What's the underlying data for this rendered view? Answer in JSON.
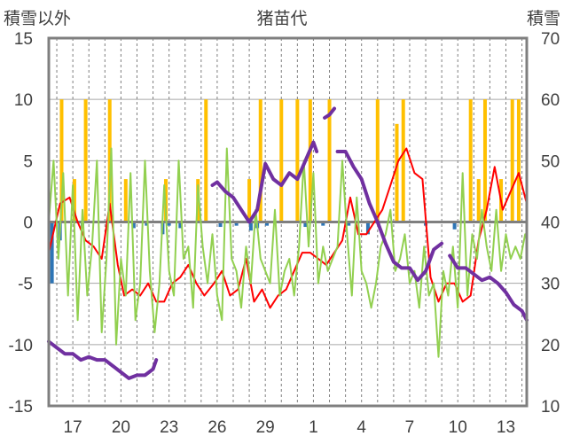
{
  "chart_data": {
    "type": "line",
    "title": "猪苗代",
    "left_axis_label": "積雪以外",
    "right_axis_label": "積雪",
    "left_ylim": [
      -15,
      15
    ],
    "right_ylim": [
      10,
      70
    ],
    "left_ticks": [
      "15",
      "10",
      "5",
      "0",
      "-5",
      "-10",
      "-15"
    ],
    "right_ticks": [
      "70",
      "60",
      "50",
      "40",
      "30",
      "20",
      "10"
    ],
    "x_ticks": [
      "17",
      "20",
      "23",
      "26",
      "29",
      "1",
      "4",
      "7",
      "10",
      "13"
    ],
    "x_days": [
      0,
      3,
      6,
      9,
      12,
      15,
      18,
      21,
      24,
      27
    ],
    "x_range": [
      -1.5,
      28.3
    ],
    "grid": true,
    "colors": {
      "orange": "#ffc000",
      "blue": "#2e75b6",
      "red": "#ff0000",
      "green": "#92d050",
      "purple": "#7030a0",
      "axis": "#7f7f7f"
    },
    "series": [
      {
        "color": "orange",
        "kind": "bar",
        "axis": "left",
        "x": [
          -0.7,
          0.1,
          0.8,
          2.3,
          3.3,
          5.8,
          7.8,
          8.3,
          11.0,
          11.7,
          13.0,
          14.0,
          14.8,
          16.0,
          19.0,
          20.2,
          20.6,
          24.8,
          25.3,
          25.7,
          26.7,
          27.4,
          27.8
        ],
        "values": [
          10,
          3.5,
          10,
          10,
          3.5,
          3.5,
          3.5,
          10,
          3.5,
          10,
          10,
          10,
          10,
          10,
          10,
          8,
          10,
          10,
          3.5,
          10,
          3.5,
          10,
          10
        ]
      },
      {
        "color": "blue",
        "kind": "bar",
        "axis": "left",
        "x": [
          -1.3,
          -0.8,
          0.6,
          3.8,
          4.6,
          5.6,
          6.0,
          6.7,
          9.2,
          10.2,
          11.1,
          11.5,
          12.1,
          14.5,
          15.6,
          17.2,
          18.4,
          22.0,
          23.8
        ],
        "values": [
          -5,
          -1.5,
          -0.5,
          -0.5,
          -0.3,
          -1.0,
          -0.3,
          -0.5,
          -0.4,
          -0.3,
          -0.7,
          -0.5,
          -0.3,
          -0.4,
          -0.3,
          -0.3,
          -1.0,
          -0.3,
          -0.6
        ]
      },
      {
        "color": "red",
        "kind": "line",
        "axis": "left",
        "x": [
          -1.5,
          -0.8,
          -0.2,
          0.3,
          0.8,
          1.3,
          1.8,
          2.3,
          2.8,
          3.2,
          3.7,
          4.2,
          4.7,
          5.2,
          5.7,
          6.2,
          6.7,
          7.2,
          7.7,
          8.2,
          8.8,
          9.3,
          9.8,
          10.3,
          10.8,
          11.3,
          11.8,
          12.3,
          12.8,
          13.3,
          13.8,
          14.3,
          14.8,
          15.3,
          15.8,
          16.3,
          16.8,
          17.3,
          17.8,
          18.3,
          18.8,
          19.3,
          19.8,
          20.3,
          20.8,
          21.3,
          21.8,
          22.3,
          22.8,
          23.3,
          23.8,
          24.3,
          24.8,
          25.3,
          25.8,
          26.3,
          26.8,
          27.3,
          27.8,
          28.3
        ],
        "values": [
          -2.5,
          1.5,
          2.0,
          0.0,
          -1.5,
          -2.0,
          -3.0,
          1.5,
          -3.5,
          -6.0,
          -5.5,
          -6.0,
          -5.0,
          -6.5,
          -6.5,
          -5.0,
          -4.5,
          -3.5,
          -5.0,
          -6.0,
          -5.0,
          -4.0,
          -6.0,
          -5.5,
          -3.0,
          -6.5,
          -5.5,
          -7.0,
          -6.0,
          -5.5,
          -4.0,
          -2.5,
          -2.5,
          -3.0,
          -3.5,
          -2.5,
          -1.5,
          2.0,
          -1.0,
          -1.0,
          0.0,
          1.0,
          3.0,
          5.0,
          6.0,
          4.0,
          3.5,
          -4.5,
          -6.5,
          -5.0,
          -5.0,
          -6.5,
          -6.0,
          -1.5,
          1.0,
          4.5,
          1.0,
          2.5,
          4.0,
          1.5
        ]
      },
      {
        "color": "green",
        "kind": "line",
        "axis": "left",
        "x": [
          -1.5,
          -1.2,
          -0.9,
          -0.6,
          -0.3,
          0.0,
          0.3,
          0.6,
          0.9,
          1.2,
          1.5,
          1.8,
          2.1,
          2.4,
          2.7,
          3.0,
          3.3,
          3.6,
          3.9,
          4.2,
          4.5,
          4.8,
          5.1,
          5.4,
          5.7,
          6.0,
          6.3,
          6.6,
          6.9,
          7.2,
          7.5,
          7.8,
          8.1,
          8.4,
          8.7,
          9.0,
          9.3,
          9.6,
          9.9,
          10.2,
          10.5,
          10.8,
          11.1,
          11.4,
          11.7,
          12.0,
          12.3,
          12.6,
          12.9,
          13.2,
          13.5,
          13.8,
          14.1,
          14.4,
          14.7,
          15.0,
          15.3,
          15.6,
          15.9,
          16.2,
          16.5,
          16.8,
          17.1,
          17.4,
          17.7,
          18.0,
          18.3,
          18.6,
          18.9,
          19.2,
          19.5,
          19.8,
          20.1,
          20.4,
          20.7,
          21.0,
          21.3,
          21.6,
          21.9,
          22.2,
          22.5,
          22.8,
          23.1,
          23.4,
          23.7,
          24.0,
          24.3,
          24.6,
          24.9,
          25.2,
          25.5,
          25.8,
          26.1,
          26.4,
          26.7,
          27.0,
          27.3,
          27.6,
          27.9,
          28.2
        ],
        "values": [
          0.0,
          5.0,
          -3.0,
          4.0,
          -6.0,
          3.0,
          -8.0,
          1.0,
          -6.0,
          -2.0,
          5.0,
          -9.0,
          -3.0,
          6.0,
          -10.0,
          -3.0,
          -6.0,
          4.0,
          -8.0,
          -5.0,
          5.0,
          -4.0,
          -9.0,
          -5.0,
          3.0,
          -4.0,
          -6.0,
          5.0,
          -3.0,
          -2.0,
          -7.0,
          3.0,
          -2.0,
          -5.0,
          -1.0,
          -6.0,
          -8.0,
          6.0,
          -3.0,
          -4.0,
          -7.0,
          -2.0,
          -5.0,
          1.0,
          -3.0,
          -4.0,
          -5.0,
          1.0,
          -6.0,
          -4.0,
          -3.0,
          -6.0,
          -2.0,
          5.0,
          -2.0,
          4.0,
          -5.0,
          -2.0,
          -4.0,
          -3.0,
          -2.0,
          5.0,
          -1.0,
          -6.0,
          2.0,
          -4.0,
          -5.0,
          -7.0,
          -5.0,
          -2.0,
          -1.0,
          1.0,
          -4.0,
          -3.0,
          -1.0,
          -5.0,
          -4.0,
          -7.0,
          -2.0,
          -6.0,
          -5.0,
          -11.0,
          -4.0,
          -6.0,
          -2.0,
          -7.0,
          4.0,
          -6.0,
          -1.0,
          -3.0,
          1.0,
          -2.0,
          -4.0,
          1.0,
          -4.0,
          -1.0,
          -3.0,
          -2.0,
          -3.0,
          -1.0
        ]
      },
      {
        "color": "purple",
        "kind": "line",
        "axis": "right",
        "segments": [
          {
            "x": [
              -1.5,
              -1.0,
              -0.5,
              0.0,
              0.5,
              1.0,
              1.5,
              2.0,
              2.5,
              3.0,
              3.5,
              4.0,
              4.5,
              5.0,
              5.2
            ],
            "values": [
              20.5,
              19.5,
              18.5,
              18.5,
              17.5,
              18.0,
              17.5,
              17.5,
              16.5,
              15.5,
              14.5,
              15.0,
              15.0,
              16.0,
              17.5
            ]
          },
          {
            "x": [
              8.7,
              9.0,
              9.5,
              10.0,
              10.5,
              11.0,
              11.5,
              12.0,
              12.5,
              13.0,
              13.5,
              14.0,
              14.5,
              15.0,
              15.2
            ],
            "values": [
              46.0,
              46.5,
              45.0,
              44.0,
              42.0,
              40.0,
              42.0,
              49.5,
              47.0,
              46.0,
              48.0,
              47.0,
              50.0,
              53.0,
              51.5
            ]
          },
          {
            "x": [
              15.7,
              16.0,
              16.3
            ],
            "values": [
              57.0,
              57.5,
              58.5
            ]
          },
          {
            "x": [
              16.5,
              17.0,
              17.5,
              18.0,
              18.5,
              19.0,
              19.5,
              20.0,
              20.5,
              21.0,
              21.5,
              22.0,
              22.5,
              23.0
            ],
            "values": [
              51.5,
              51.5,
              49.0,
              47.0,
              43.0,
              40.0,
              36.5,
              33.5,
              32.5,
              32.5,
              30.5,
              32.0,
              35.5,
              36.5
            ]
          },
          {
            "x": [
              23.5,
              24.0,
              24.5,
              25.0,
              25.5,
              26.0,
              26.5,
              27.0,
              27.5,
              28.0,
              28.3
            ],
            "values": [
              34.5,
              32.5,
              32.5,
              31.5,
              30.5,
              31.0,
              30.0,
              28.5,
              26.5,
              25.5,
              24.0
            ]
          }
        ]
      }
    ]
  }
}
